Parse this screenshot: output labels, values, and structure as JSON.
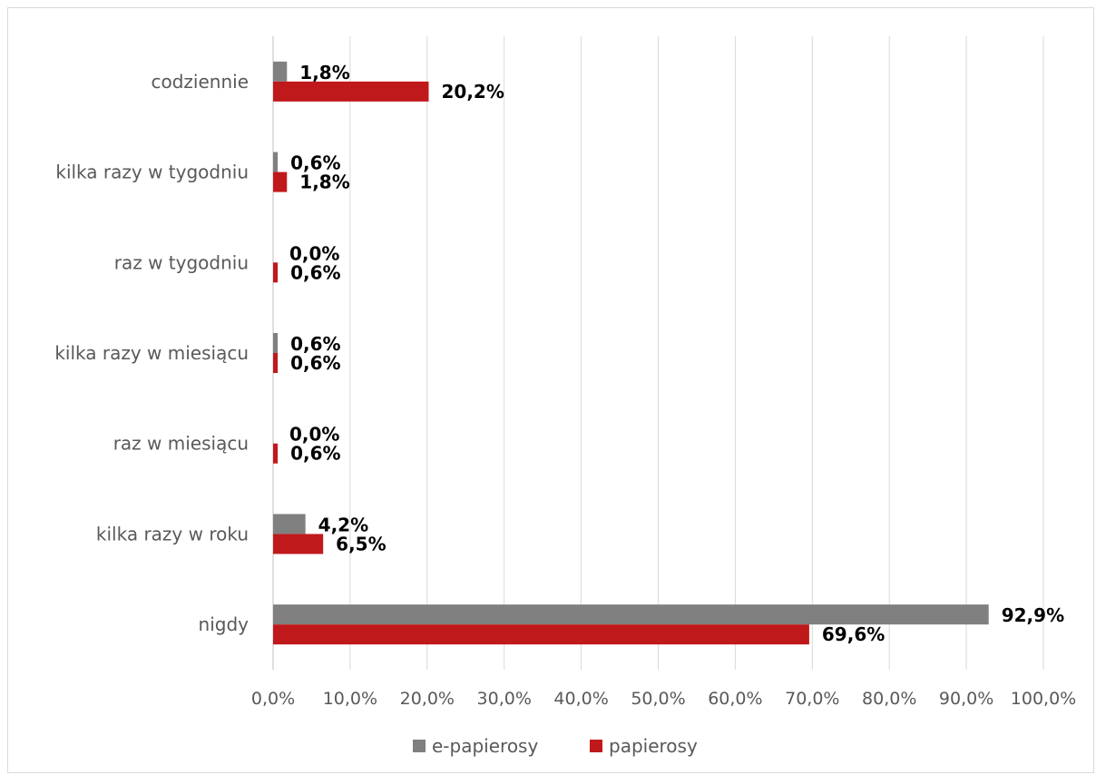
{
  "chart_data": {
    "type": "bar",
    "orientation": "horizontal",
    "categories": [
      "codziennie",
      "kilka razy w tygodniu",
      "raz w tygodniu",
      "kilka razy w miesiącu",
      "raz w miesiącu",
      "kilka razy w roku",
      "nigdy"
    ],
    "series": [
      {
        "name": "e-papierosy",
        "color": "#808080",
        "values": [
          1.8,
          0.6,
          0.0,
          0.6,
          0.0,
          4.2,
          92.9
        ],
        "labels": [
          "1,8%",
          "0,6%",
          "0,0%",
          "0,6%",
          "0,0%",
          "4,2%",
          "92,9%"
        ]
      },
      {
        "name": "papierosy",
        "color": "#C0191B",
        "values": [
          20.2,
          1.8,
          0.6,
          0.6,
          0.6,
          6.5,
          69.6
        ],
        "labels": [
          "20,2%",
          "1,8%",
          "0,6%",
          "0,6%",
          "0,6%",
          "6,5%",
          "69,6%"
        ]
      }
    ],
    "xlim": [
      0,
      100
    ],
    "ticks": [
      0,
      10,
      20,
      30,
      40,
      50,
      60,
      70,
      80,
      90,
      100
    ],
    "tick_labels": [
      "0,0%",
      "10,0%",
      "20,0%",
      "30,0%",
      "40,0%",
      "50,0%",
      "60,0%",
      "70,0%",
      "80,0%",
      "90,0%",
      "100,0%"
    ],
    "grid": true,
    "legend_position": "bottom"
  }
}
